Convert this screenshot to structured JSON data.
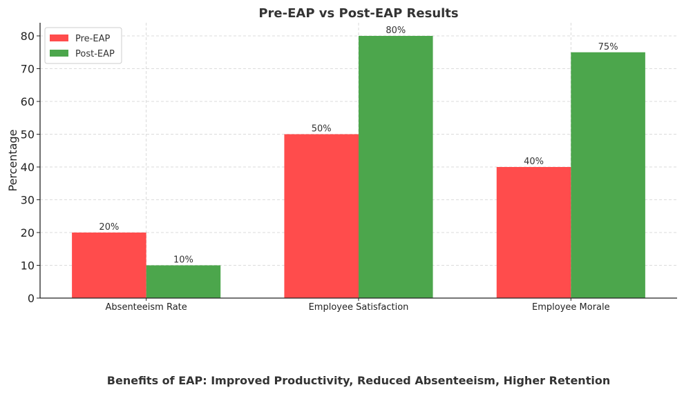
{
  "chart_data": {
    "type": "bar",
    "title": "Pre-EAP vs Post-EAP Results",
    "ylabel": "Percentage",
    "xlabel": "",
    "ylim": [
      0,
      84
    ],
    "yticks": [
      0,
      10,
      20,
      30,
      40,
      50,
      60,
      70,
      80
    ],
    "categories": [
      "Absenteeism Rate",
      "Employee Satisfaction",
      "Employee Morale"
    ],
    "series": [
      {
        "name": "Pre-EAP",
        "values": [
          20,
          50,
          40
        ],
        "labels": [
          "20%",
          "50%",
          "40%"
        ],
        "color": "#ff4c4c"
      },
      {
        "name": "Post-EAP",
        "values": [
          10,
          80,
          75
        ],
        "labels": [
          "10%",
          "80%",
          "75%"
        ],
        "color": "#4ca64c"
      }
    ],
    "grid": true,
    "legend_position": "top-left",
    "footer_text": "Benefits of EAP: Improved Productivity, Reduced Absenteeism, Higher Retention"
  }
}
